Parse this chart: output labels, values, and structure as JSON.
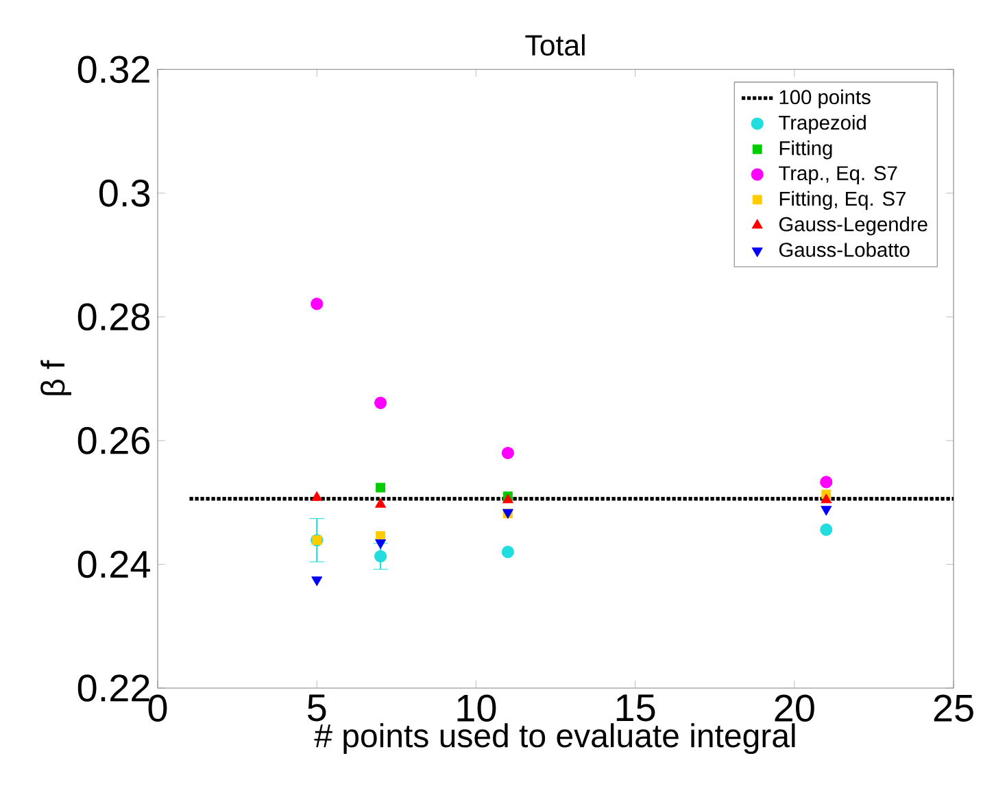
{
  "chart_data": {
    "type": "scatter",
    "title": "Total",
    "xlabel": "# points used to evaluate integral",
    "ylabel": "β f",
    "x": [
      5,
      7,
      11,
      21
    ],
    "xlim": [
      0,
      25
    ],
    "xticks": [
      0,
      5,
      10,
      15,
      20,
      25
    ],
    "ylim": [
      0.22,
      0.32
    ],
    "yticks": [
      0.22,
      0.24,
      0.26,
      0.28,
      0.3,
      0.32
    ],
    "legend": "top right",
    "grid": false,
    "series": [
      {
        "name": "100 points",
        "type": "line",
        "x": [
          1,
          25
        ],
        "values": [
          0.2506,
          0.2506
        ],
        "color": "#000000",
        "line_style": "dotted",
        "marker": "none"
      },
      {
        "name": "Trapezoid",
        "color": "#22dddd",
        "marker": "circle",
        "values": [
          0.2439,
          0.2413,
          0.242,
          0.2456
        ],
        "errors": [
          0.0035,
          0.0021,
          null,
          null
        ]
      },
      {
        "name": "Fitting",
        "color": "#00cc00",
        "marker": "square",
        "values": [
          null,
          0.2524,
          0.251,
          null
        ]
      },
      {
        "name": "Trap., Eq. S7",
        "color": "#ff00ff",
        "marker": "circle",
        "values": [
          0.2821,
          0.2661,
          0.258,
          0.2533
        ]
      },
      {
        "name": "Fitting, Eq. S7",
        "color": "#ffcc00",
        "marker": "square",
        "values": [
          0.2439,
          0.2446,
          0.2482,
          0.2513
        ]
      },
      {
        "name": "Gauss-Legendre",
        "color": "#ff0000",
        "marker": "triangle",
        "values": [
          0.2508,
          0.2497,
          0.2504,
          0.2504
        ]
      },
      {
        "name": "Gauss-Lobatto",
        "color": "#0000ff",
        "marker": "triangle-down",
        "values": [
          0.2375,
          0.2435,
          0.2484,
          0.2489
        ]
      }
    ]
  }
}
